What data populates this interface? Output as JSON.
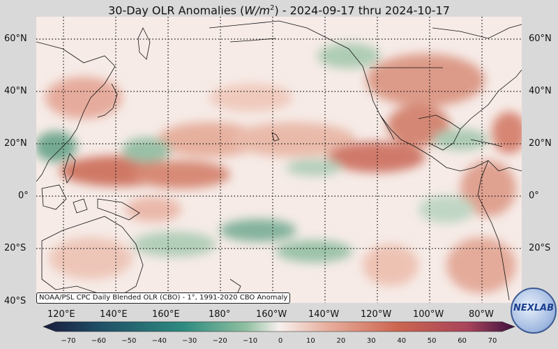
{
  "title": {
    "prefix": "30-Day OLR Anomalies (",
    "unit_base": "W/m",
    "unit_exp": "2",
    "suffix": ") - 2024-09-17 thru 2024-10-17"
  },
  "lat_labels": [
    "60°N",
    "40°N",
    "20°N",
    "0°",
    "20°S",
    "40°S"
  ],
  "lon_labels": [
    "120°E",
    "140°E",
    "160°E",
    "180°",
    "160°W",
    "140°W",
    "120°W",
    "100°W",
    "80°W"
  ],
  "credit": "NOAA/PSL CPC Daily Blended OLR (CBO) - 1°, 1991-2020 CBO Anomaly",
  "colorbar": {
    "ticks": [
      "−70",
      "−60",
      "−50",
      "−40",
      "−30",
      "−20",
      "−10",
      "0",
      "10",
      "20",
      "30",
      "40",
      "50",
      "60",
      "70"
    ],
    "colors": {
      "min_end": "#1b1b3c",
      "neg_dark": "#1f4f66",
      "neg_mid": "#2f8c80",
      "neg_light": "#8fbfa0",
      "neutral": "#f7f0ee",
      "pos_light": "#e8b0a0",
      "pos_mid": "#cc6650",
      "pos_dark": "#a8445a",
      "max_end": "#3e1140"
    }
  },
  "logo": {
    "text": "NEXLAB"
  },
  "colors": {
    "background": "#d9d9d9",
    "map_base": "#f6ebe7",
    "positive_anomaly": "#d9826e",
    "negative_anomaly": "#6aa88c",
    "coastline": "#111111",
    "gridline": "#111111"
  }
}
